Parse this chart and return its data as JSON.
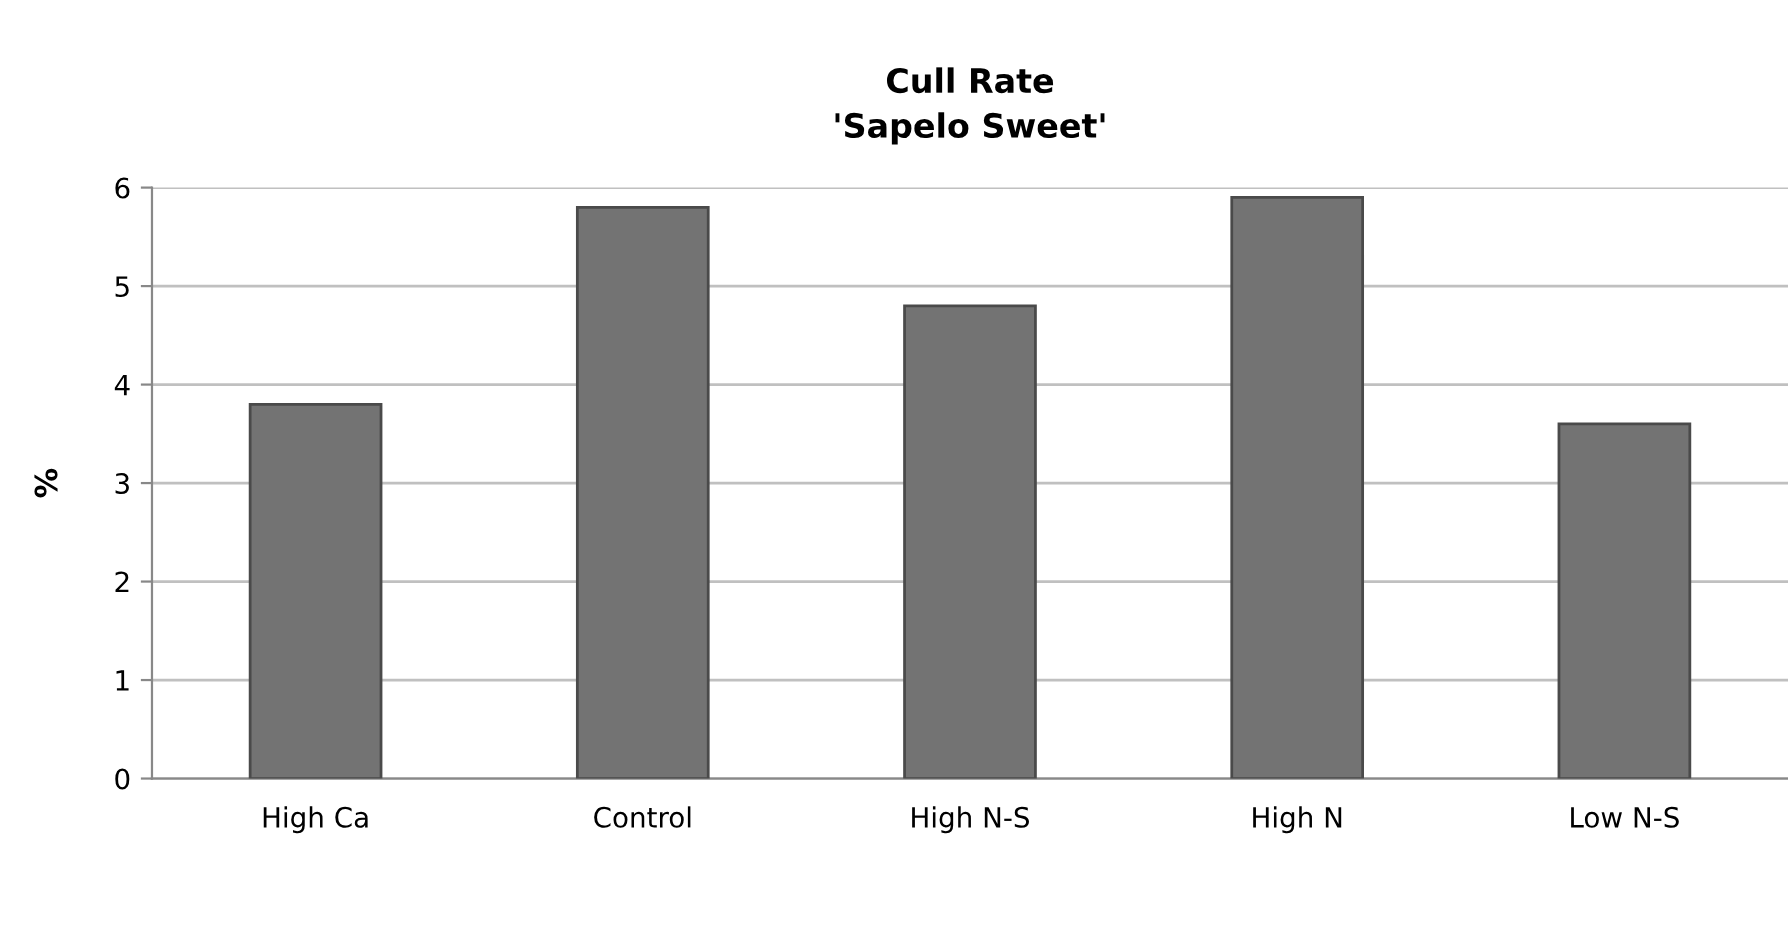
{
  "chart_data": {
    "type": "bar",
    "title": "Cull Rate\n'Sapelo Sweet'",
    "ylabel": "%",
    "categories": [
      "High Ca",
      "Control",
      "High N-S",
      "High N",
      "Low N-S"
    ],
    "values": [
      3.8,
      5.8,
      4.8,
      5.9,
      3.6
    ],
    "color": "#737373",
    "ylim": [
      0,
      6
    ],
    "yticks": [
      0,
      1,
      2,
      3,
      4,
      5,
      6
    ],
    "grid": "y"
  }
}
